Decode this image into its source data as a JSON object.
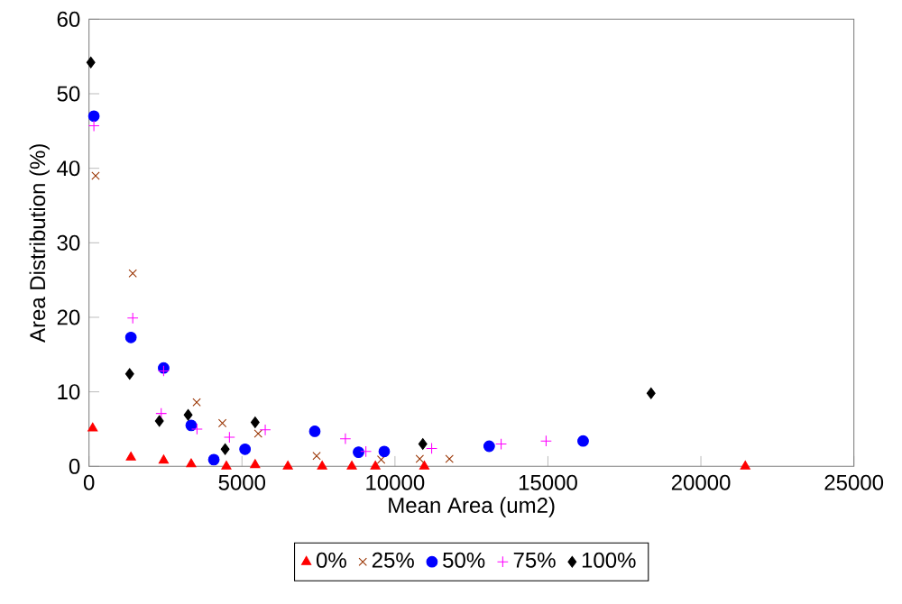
{
  "chart_data": {
    "type": "scatter",
    "xlabel": "Mean Area (um2)",
    "ylabel": "Area Distribution (%)",
    "xlim": [
      0,
      25000
    ],
    "xticks": [
      0,
      5000,
      10000,
      15000,
      20000,
      25000
    ],
    "ylim": [
      0,
      60
    ],
    "yticks": [
      0,
      10,
      20,
      30,
      40,
      50,
      60
    ],
    "grid": false,
    "legend": "bottom",
    "series": [
      {
        "name": "0%",
        "color": "#ff0000",
        "marker": "triangle",
        "x": [
          120,
          1370,
          2440,
          3340,
          4490,
          5430,
          6500,
          7620,
          8590,
          9360,
          10960,
          21450
        ],
        "values": [
          5.1,
          1.2,
          0.8,
          0.3,
          0,
          0.2,
          0,
          0,
          0,
          0,
          0,
          0
        ]
      },
      {
        "name": "25%",
        "color": "#993300",
        "marker": "cross",
        "x": [
          215,
          1430,
          3520,
          4360,
          5530,
          7440,
          9550,
          10810,
          11780
        ],
        "values": [
          39.0,
          25.9,
          8.6,
          5.8,
          4.4,
          1.4,
          0.9,
          1.0,
          1.0
        ]
      },
      {
        "name": "50%",
        "color": "#0000ff",
        "marker": "circle",
        "x": [
          160,
          1370,
          2440,
          3340,
          4080,
          5100,
          7380,
          8810,
          9650,
          13080,
          16150
        ],
        "values": [
          47.0,
          17.3,
          13.2,
          5.5,
          0.9,
          2.3,
          4.7,
          1.9,
          2.0,
          2.7,
          3.4
        ]
      },
      {
        "name": "75%",
        "color": "#ff00ff",
        "marker": "plus",
        "x": [
          160,
          1430,
          2440,
          2360,
          3530,
          4590,
          5760,
          8380,
          9050,
          11200,
          13470,
          14940
        ],
        "values": [
          45.7,
          19.9,
          12.8,
          7.1,
          5.0,
          3.9,
          4.9,
          3.7,
          2.0,
          2.4,
          3.0,
          3.4
        ]
      },
      {
        "name": "100%",
        "color": "#000000",
        "marker": "diamond",
        "x": [
          60,
          1330,
          2300,
          3240,
          4450,
          5430,
          10910,
          18370
        ],
        "values": [
          54.2,
          12.4,
          6.1,
          6.9,
          2.3,
          5.9,
          3.0,
          9.8
        ]
      }
    ]
  }
}
